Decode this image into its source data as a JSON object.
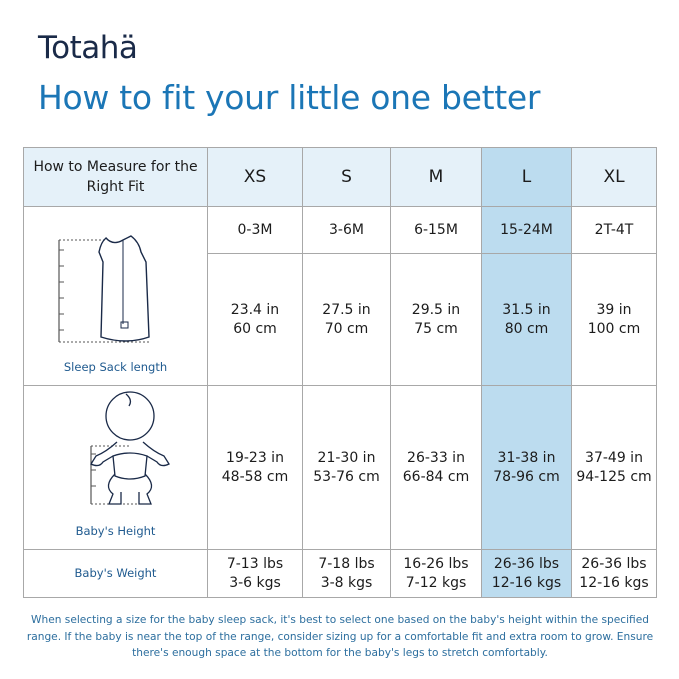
{
  "brand": {
    "logo_text": "Totahä"
  },
  "title": "How to fit your little one better",
  "table": {
    "header": "How to Measure for the Right Fit",
    "sizes": [
      "XS",
      "S",
      "M",
      "L",
      "XL"
    ],
    "highlighted": "L",
    "ages": [
      "0-3M",
      "3-6M",
      "6-15M",
      "15-24M",
      "2T-4T"
    ],
    "length_label": "Sleep Sack length",
    "length": [
      [
        "23.4 in",
        "60 cm"
      ],
      [
        "27.5 in",
        "70 cm"
      ],
      [
        "29.5 in",
        "75 cm"
      ],
      [
        "31.5 in",
        "80 cm"
      ],
      [
        "39 in",
        "100 cm"
      ]
    ],
    "height_label": "Baby's Height",
    "height": [
      [
        "19-23 in",
        "48-58 cm"
      ],
      [
        "21-30 in",
        "53-76 cm"
      ],
      [
        "26-33 in",
        "66-84 cm"
      ],
      [
        "31-38 in",
        "78-96 cm"
      ],
      [
        "37-49 in",
        "94-125 cm"
      ]
    ],
    "weight_label": "Baby's Weight",
    "weight": [
      [
        "7-13 lbs",
        "3-6 kgs"
      ],
      [
        "7-18 lbs",
        "3-8 kgs"
      ],
      [
        "16-26 lbs",
        "7-12 kgs"
      ],
      [
        "26-36 lbs",
        "12-16 kgs"
      ],
      [
        "26-36 lbs",
        "12-16 kgs"
      ]
    ]
  },
  "colors": {
    "title": "#1b76b6",
    "logo": "#1a2a48",
    "header_bg": "#e5f1f9",
    "highlight": "#bcdcef",
    "label": "#1f5a8f"
  },
  "note": "When selecting a size for the baby sleep sack, it's best to select one based on the baby's height within the specified range. If the baby is near the top of the range, consider sizing up for a comfortable fit and extra room to grow. Ensure there's enough space at the bottom for the baby's legs to stretch comfortably."
}
